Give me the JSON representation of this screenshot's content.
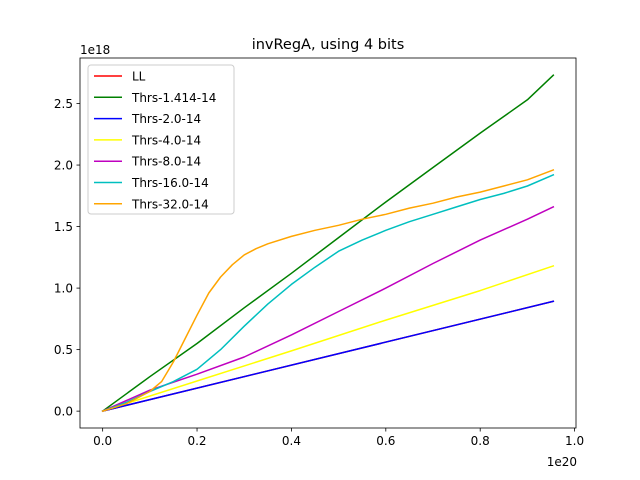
{
  "chart_data": {
    "type": "line",
    "title": "invRegA, using 4 bits",
    "xlabel": "",
    "ylabel": "",
    "x_offset_label": "1e20",
    "y_offset_label": "1e18",
    "xlim": [
      -0.048,
      1.003
    ],
    "ylim": [
      -0.137,
      2.87
    ],
    "xticks": [
      0.0,
      0.2,
      0.4,
      0.6,
      0.8,
      1.0
    ],
    "xtick_labels": [
      "0.0",
      "0.2",
      "0.4",
      "0.6",
      "0.8",
      "1.0"
    ],
    "yticks": [
      0.0,
      0.5,
      1.0,
      1.5,
      2.0,
      2.5
    ],
    "ytick_labels": [
      "0.0",
      "0.5",
      "1.0",
      "1.5",
      "2.0",
      "2.5"
    ],
    "grid": false,
    "legend_position": "top-left",
    "series": [
      {
        "name": "LL",
        "color": "#ff0000",
        "x": [
          0.0,
          0.955
        ],
        "y": [
          0.0,
          0.893
        ]
      },
      {
        "name": "Thrs-1.414-14",
        "color": "#008000",
        "x": [
          0.0,
          0.1,
          0.2,
          0.3,
          0.4,
          0.5,
          0.6,
          0.7,
          0.8,
          0.9,
          0.955
        ],
        "y": [
          0.0,
          0.28,
          0.55,
          0.84,
          1.12,
          1.41,
          1.7,
          1.98,
          2.26,
          2.53,
          2.73
        ]
      },
      {
        "name": "Thrs-2.0-14",
        "color": "#0000ff",
        "x": [
          0.0,
          0.955
        ],
        "y": [
          0.0,
          0.893
        ]
      },
      {
        "name": "Thrs-4.0-14",
        "color": "#ffff00",
        "x": [
          0.0,
          0.2,
          0.4,
          0.6,
          0.8,
          0.955
        ],
        "y": [
          0.0,
          0.245,
          0.49,
          0.74,
          0.98,
          1.18
        ]
      },
      {
        "name": "Thrs-8.0-14",
        "color": "#bf00bf",
        "x": [
          0.0,
          0.1,
          0.2,
          0.3,
          0.4,
          0.5,
          0.6,
          0.7,
          0.8,
          0.9,
          0.955
        ],
        "y": [
          0.0,
          0.17,
          0.3,
          0.44,
          0.62,
          0.81,
          1.0,
          1.2,
          1.39,
          1.56,
          1.66
        ]
      },
      {
        "name": "Thrs-16.0-14",
        "color": "#00bfbf",
        "x": [
          0.0,
          0.05,
          0.1,
          0.15,
          0.2,
          0.25,
          0.3,
          0.35,
          0.4,
          0.45,
          0.5,
          0.55,
          0.6,
          0.65,
          0.7,
          0.75,
          0.8,
          0.85,
          0.9,
          0.955
        ],
        "y": [
          0.0,
          0.07,
          0.16,
          0.24,
          0.34,
          0.5,
          0.69,
          0.87,
          1.03,
          1.17,
          1.3,
          1.39,
          1.47,
          1.54,
          1.6,
          1.66,
          1.72,
          1.77,
          1.83,
          1.92
        ]
      },
      {
        "name": "Thrs-32.0-14",
        "color": "#ffa500",
        "x": [
          0.0,
          0.05,
          0.1,
          0.125,
          0.15,
          0.175,
          0.2,
          0.225,
          0.25,
          0.275,
          0.3,
          0.325,
          0.35,
          0.4,
          0.45,
          0.5,
          0.55,
          0.6,
          0.65,
          0.7,
          0.75,
          0.8,
          0.85,
          0.9,
          0.955
        ],
        "y": [
          0.0,
          0.06,
          0.16,
          0.24,
          0.4,
          0.59,
          0.78,
          0.96,
          1.09,
          1.19,
          1.27,
          1.32,
          1.36,
          1.42,
          1.47,
          1.51,
          1.56,
          1.6,
          1.65,
          1.69,
          1.74,
          1.78,
          1.83,
          1.88,
          1.96
        ]
      }
    ]
  }
}
